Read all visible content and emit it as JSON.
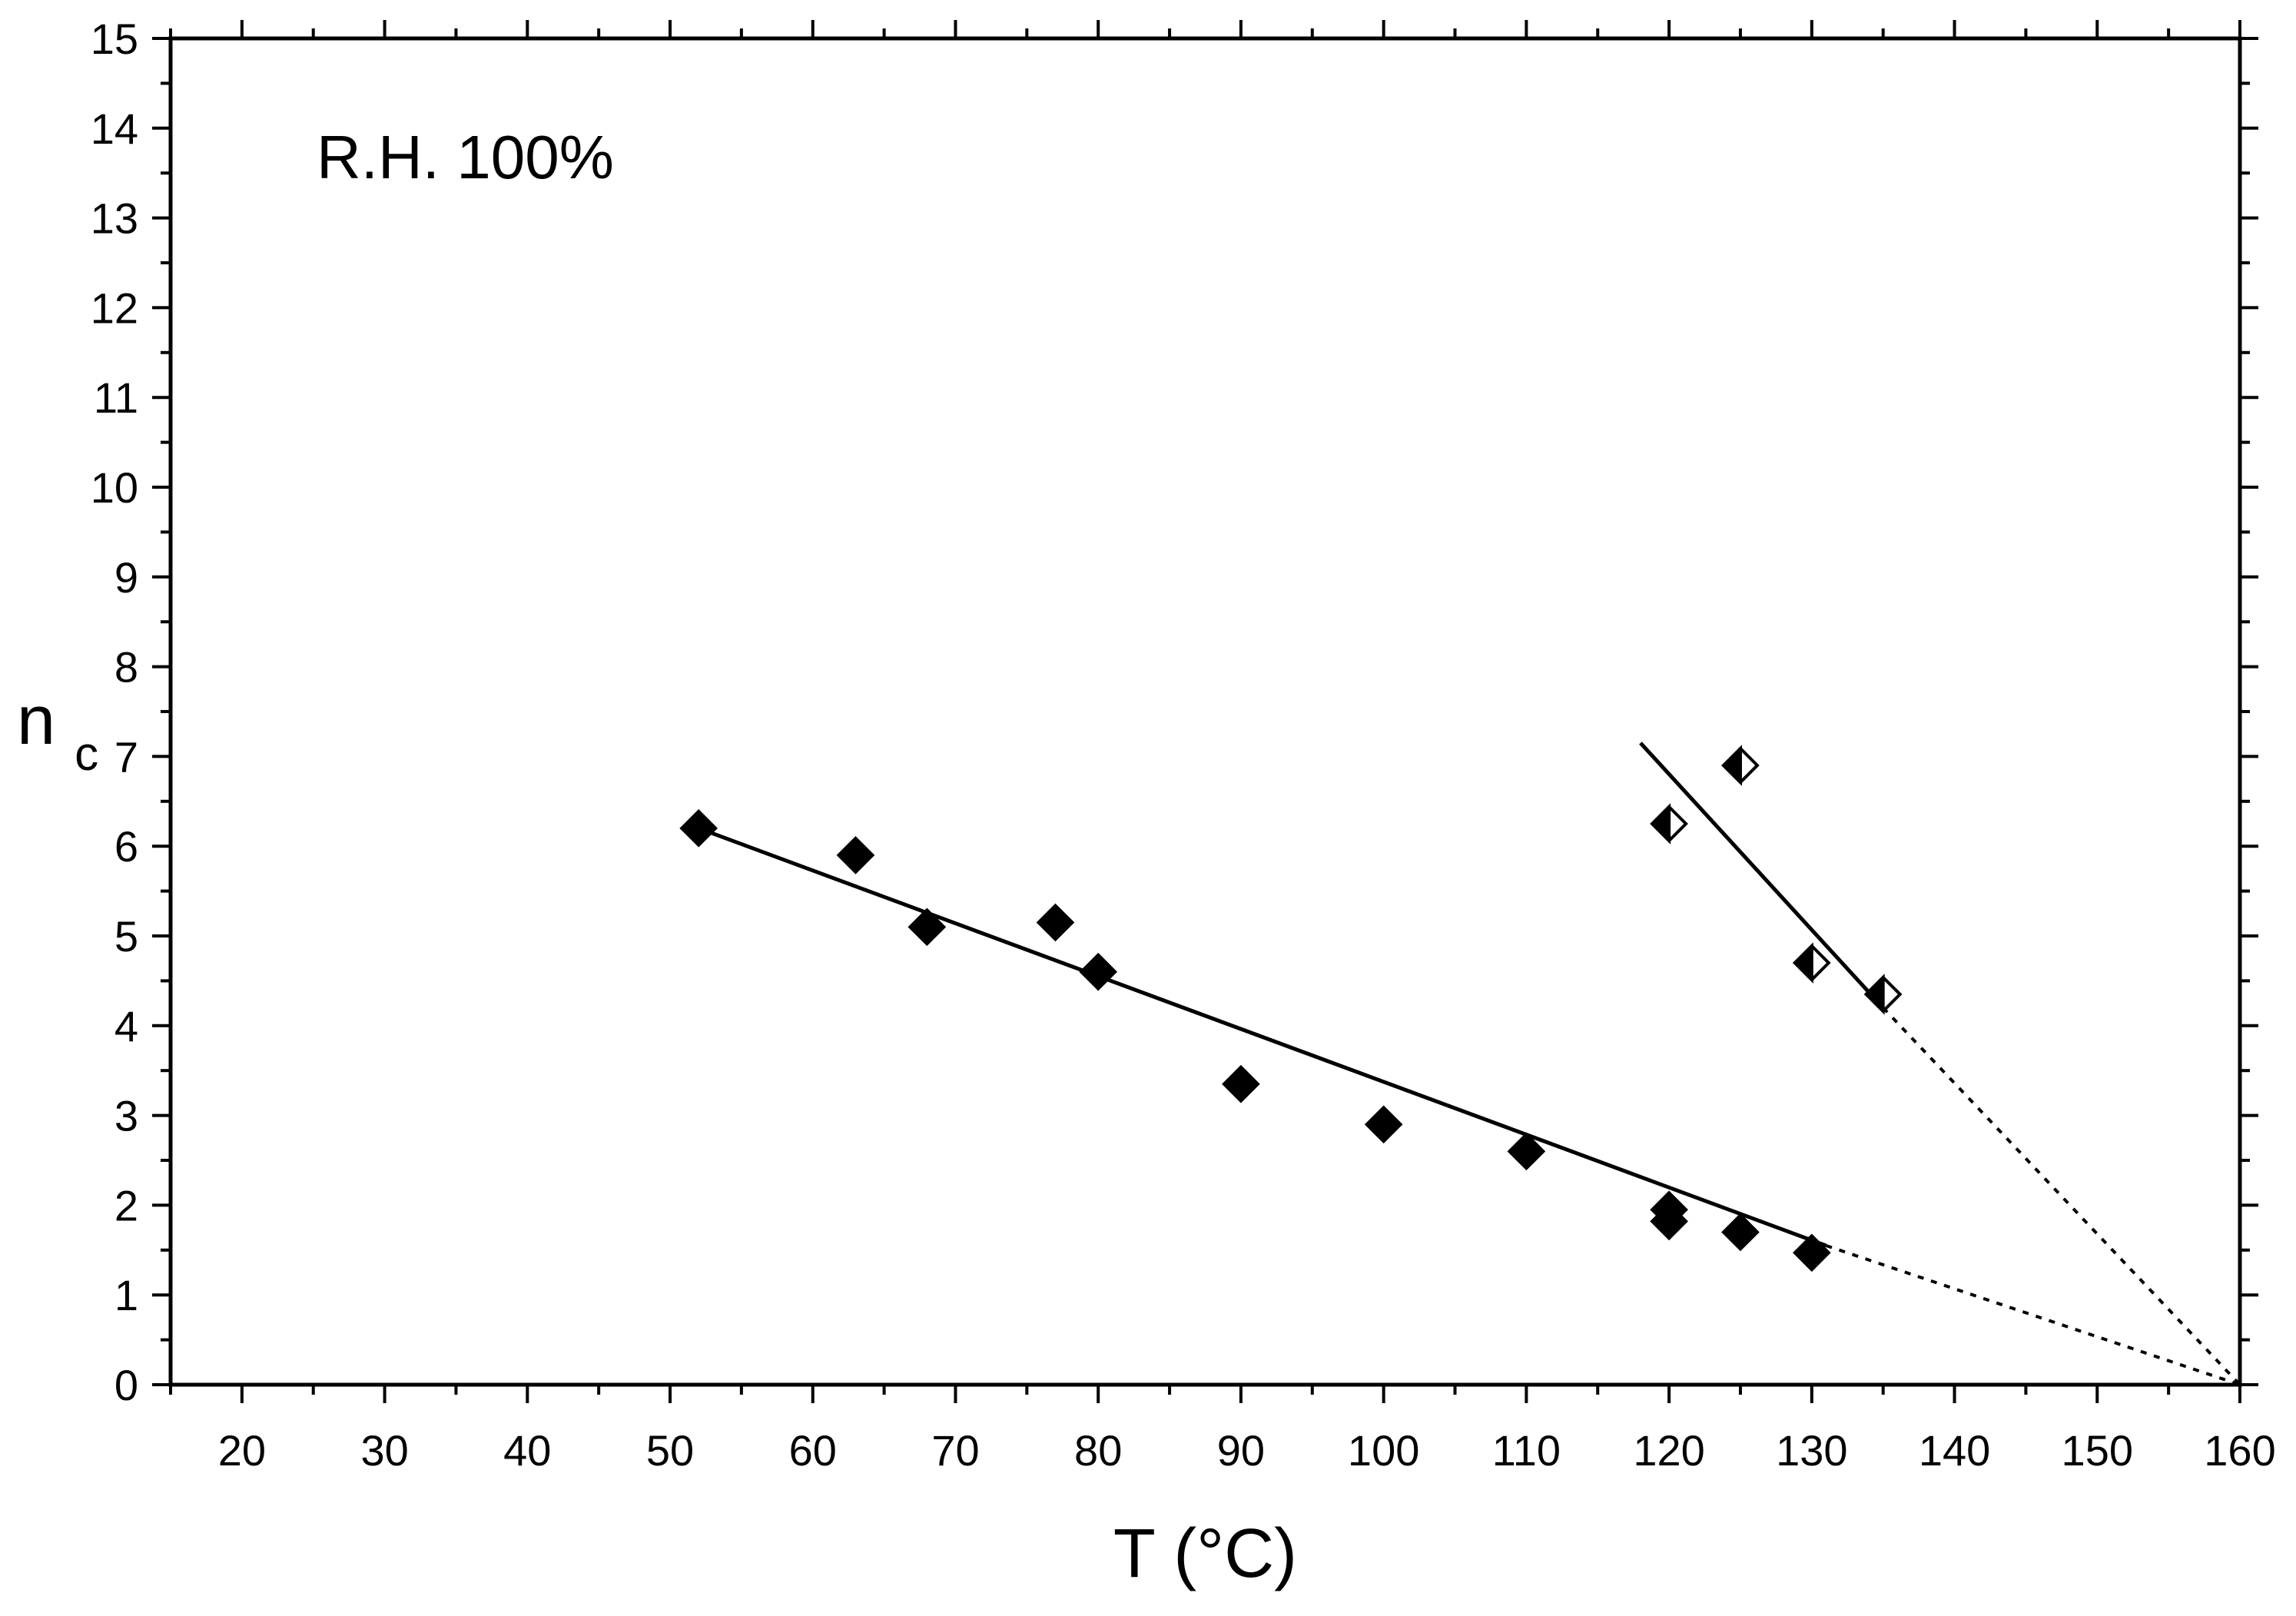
{
  "chart_data": {
    "type": "scatter",
    "title": "",
    "annotation": "R.H. 100%",
    "xlabel": "T (°C)",
    "ylabel_main": "n",
    "ylabel_sub": "c",
    "xlim": [
      15,
      160
    ],
    "ylim": [
      0,
      15
    ],
    "x_ticks": [
      20,
      30,
      40,
      50,
      60,
      70,
      80,
      90,
      100,
      110,
      120,
      130,
      140,
      150,
      160
    ],
    "y_ticks": [
      0,
      1,
      2,
      3,
      4,
      5,
      6,
      7,
      8,
      9,
      10,
      11,
      12,
      13,
      14,
      15
    ],
    "grid": false,
    "series": [
      {
        "name": "filled diamonds",
        "marker": "diamond-filled",
        "color": "#000000",
        "points": [
          {
            "x": 52,
            "y": 6.2
          },
          {
            "x": 63,
            "y": 5.9
          },
          {
            "x": 68,
            "y": 5.1
          },
          {
            "x": 77,
            "y": 5.15
          },
          {
            "x": 80,
            "y": 4.6
          },
          {
            "x": 90,
            "y": 3.35
          },
          {
            "x": 100,
            "y": 2.9
          },
          {
            "x": 110,
            "y": 2.6
          },
          {
            "x": 120,
            "y": 1.95
          },
          {
            "x": 120,
            "y": 1.82
          },
          {
            "x": 125,
            "y": 1.7
          },
          {
            "x": 130,
            "y": 1.47
          }
        ]
      },
      {
        "name": "half-filled diamonds",
        "marker": "diamond-half",
        "color": "#000000",
        "points": [
          {
            "x": 120,
            "y": 6.25
          },
          {
            "x": 125,
            "y": 6.9
          },
          {
            "x": 130,
            "y": 4.7
          },
          {
            "x": 135,
            "y": 4.35
          }
        ]
      }
    ],
    "fit_lines": [
      {
        "name": "fit-filled",
        "style": "solid",
        "from": [
          52,
          6.2
        ],
        "to": [
          131,
          1.55
        ]
      },
      {
        "name": "extrapolation-filled",
        "style": "dotted",
        "from": [
          131,
          1.55
        ],
        "to": [
          160,
          0
        ]
      },
      {
        "name": "fit-half",
        "style": "solid",
        "from": [
          118,
          7.15
        ],
        "to": [
          135,
          4.2
        ]
      },
      {
        "name": "extrapolation-half",
        "style": "dotted",
        "from": [
          135,
          4.2
        ],
        "to": [
          160,
          0
        ]
      }
    ]
  }
}
